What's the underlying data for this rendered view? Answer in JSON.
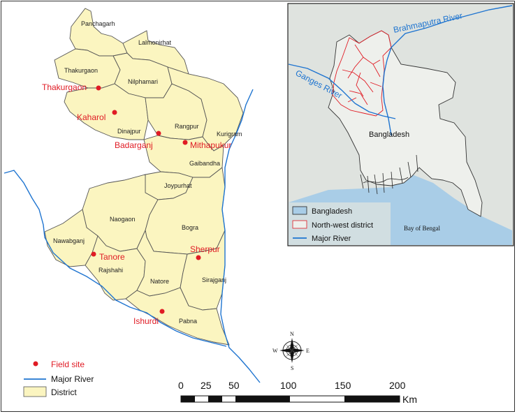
{
  "districts": [
    "Panchagarh",
    "Lalmonirhat",
    "Thakurgaon",
    "Nilphamari",
    "Dinajpur",
    "Rangpur",
    "Kurigram",
    "Gaibandha",
    "Joypurhat",
    "Naogaon",
    "Bogra",
    "Nawabganj",
    "Rajshahi",
    "Natore",
    "Sirajganj",
    "Pabna"
  ],
  "field_sites": [
    "Thakurgaon",
    "Kaharol",
    "Badarganj",
    "Mithapukur",
    "Tanore",
    "Sherpur",
    "Ishurdi"
  ],
  "legend": {
    "field_site": "Field site",
    "major_river": "Major River",
    "district": "District"
  },
  "inset": {
    "rivers": {
      "brahmaputra": "Brahmaputra River",
      "ganges": "Ganges River"
    },
    "country": "Bangladesh",
    "bay": "Bay of Bengal",
    "legend": {
      "bangladesh": "Bangladesh",
      "northwest": "North-west district",
      "river": "Major River"
    }
  },
  "compass": {
    "n": "N",
    "s": "S",
    "e": "E",
    "w": "W"
  },
  "scalebar": {
    "ticks": [
      "0",
      "25",
      "50",
      "100",
      "150",
      "200"
    ],
    "unit": "Km"
  },
  "colors": {
    "district_fill": "#fbf5c0",
    "site": "#e01b24",
    "river": "#1e74d0",
    "water": "#a9cde7",
    "land": "#dfe3df",
    "bd_fill": "#eef0ec"
  }
}
